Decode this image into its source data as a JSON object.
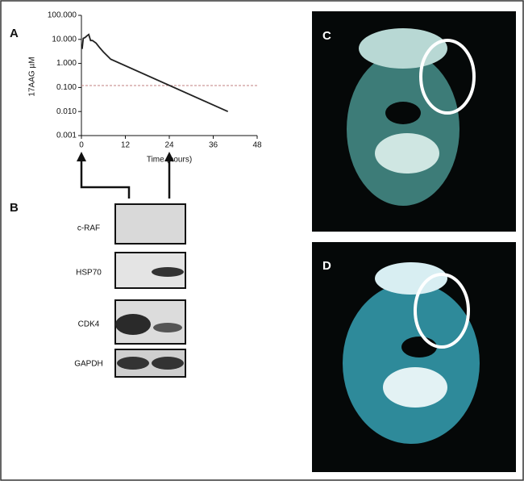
{
  "chart_data": {
    "type": "line",
    "panel_label": "A",
    "x_label": "Time (hours)",
    "y_label": "17AAG µM",
    "x": [
      0.2,
      0.5,
      1,
      1.5,
      2,
      2.5,
      3,
      4,
      5,
      6,
      8,
      40
    ],
    "values": [
      4,
      11,
      12,
      14,
      16,
      9,
      9,
      7,
      4.5,
      3,
      1.5,
      0.01
    ],
    "color": "#222222",
    "log_scale": "y",
    "xlim": [
      0,
      48
    ],
    "xticks": [
      0,
      12,
      24,
      36,
      48
    ],
    "ylim": [
      0.001,
      100
    ],
    "yticks": [
      {
        "value": 0.001,
        "label": "0.001"
      },
      {
        "value": 0.01,
        "label": "0.010"
      },
      {
        "value": 0.1,
        "label": "0.100"
      },
      {
        "value": 1,
        "label": "1.000"
      },
      {
        "value": 10,
        "label": "10.000"
      },
      {
        "value": 100,
        "label": "100.000"
      }
    ],
    "reference_line": 0.12,
    "reference_color": "#c08080"
  },
  "panels": {
    "blot_label": "B",
    "blots": [
      "c-RAF",
      "HSP70",
      "CDK4",
      "GAPDH"
    ],
    "ct_top_label": "C",
    "ct_bottom_label": "D"
  }
}
